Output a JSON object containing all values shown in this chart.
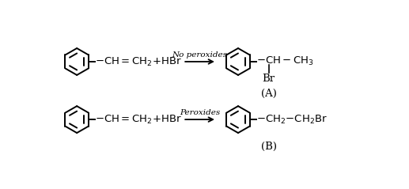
{
  "bg_color": "#ffffff",
  "fig_width": 5.17,
  "fig_height": 2.39,
  "dpi": 100,
  "rxnA_condition": "No peroxides",
  "rxnB_condition": "Peroxides",
  "labelA": "(A)",
  "labelB": "(B)"
}
